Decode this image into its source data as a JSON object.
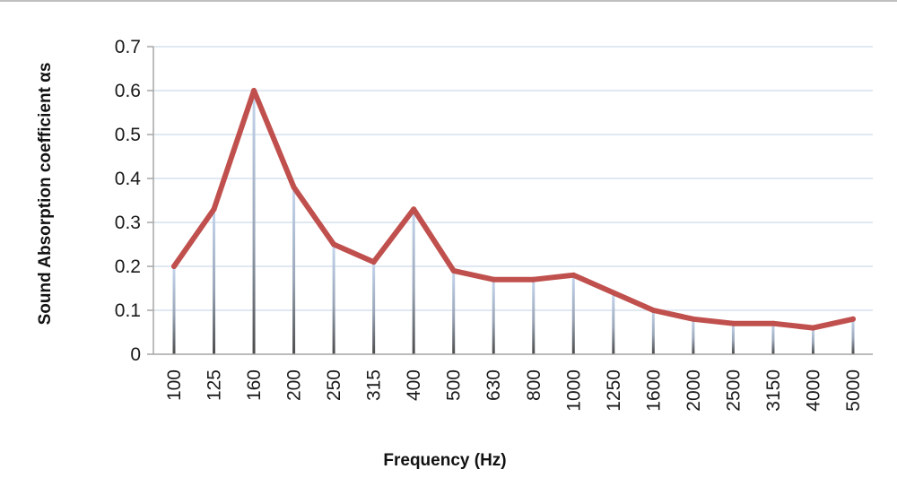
{
  "chart_data": {
    "type": "line",
    "title": "",
    "xlabel": "Frequency (Hz)",
    "ylabel": "Sound Absorption coefficient  αs",
    "categories": [
      "100",
      "125",
      "160",
      "200",
      "250",
      "315",
      "400",
      "500",
      "630",
      "800",
      "1000",
      "1250",
      "1600",
      "2000",
      "2500",
      "3150",
      "4000",
      "5000"
    ],
    "series": [
      {
        "values": [
          0.2,
          0.33,
          0.6,
          0.38,
          0.25,
          0.21,
          0.33,
          0.19,
          0.17,
          0.17,
          0.18,
          0.14,
          0.1,
          0.08,
          0.07,
          0.07,
          0.06,
          0.08
        ]
      }
    ],
    "ylim": [
      0,
      0.7
    ],
    "yticks": [
      "0",
      "0.1",
      "0.2",
      "0.3",
      "0.4",
      "0.5",
      "0.6",
      "0.7"
    ],
    "grid": true,
    "drop_lines": true,
    "colors": {
      "line": "#c0504d",
      "grid": "#d6e0ee",
      "drop_top": "#c5d6ee",
      "drop_bottom": "#555555",
      "axis": "#a6a6a6"
    }
  }
}
